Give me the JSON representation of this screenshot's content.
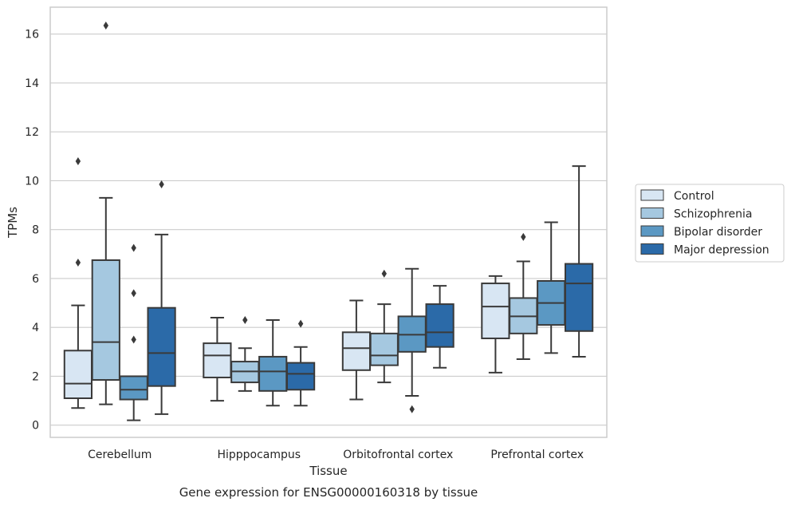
{
  "caption": "Gene expression for ENSG00000160318 by tissue",
  "chart_data": {
    "type": "box",
    "title": "",
    "xlabel": "Tissue",
    "ylabel": "TPMs",
    "ylim": [
      -0.5,
      17.1
    ],
    "yticks": [
      0,
      2,
      4,
      6,
      8,
      10,
      12,
      14,
      16
    ],
    "grid": true,
    "legend_position": "right",
    "categories": [
      "Cerebellum",
      "Hipppocampus",
      "Orbitofrontal cortex",
      "Prefrontal cortex"
    ],
    "series": [
      {
        "name": "Control",
        "color": "#d8e6f3",
        "boxes": [
          {
            "whisker_low": 0.7,
            "q1": 1.1,
            "median": 1.7,
            "q3": 3.05,
            "whisker_high": 4.9,
            "outliers": [
              6.65,
              10.8
            ]
          },
          {
            "whisker_low": 1.0,
            "q1": 1.95,
            "median": 2.85,
            "q3": 3.35,
            "whisker_high": 4.4,
            "outliers": []
          },
          {
            "whisker_low": 1.05,
            "q1": 2.25,
            "median": 3.15,
            "q3": 3.8,
            "whisker_high": 5.1,
            "outliers": []
          },
          {
            "whisker_low": 2.15,
            "q1": 3.55,
            "median": 4.85,
            "q3": 5.8,
            "whisker_high": 6.1,
            "outliers": []
          }
        ]
      },
      {
        "name": "Schizophrenia",
        "color": "#a5c8e0",
        "boxes": [
          {
            "whisker_low": 0.85,
            "q1": 1.85,
            "median": 3.4,
            "q3": 6.75,
            "whisker_high": 9.3,
            "outliers": [
              16.35
            ]
          },
          {
            "whisker_low": 1.4,
            "q1": 1.75,
            "median": 2.2,
            "q3": 2.6,
            "whisker_high": 3.15,
            "outliers": [
              4.3
            ]
          },
          {
            "whisker_low": 1.75,
            "q1": 2.45,
            "median": 2.85,
            "q3": 3.75,
            "whisker_high": 4.95,
            "outliers": [
              6.2
            ]
          },
          {
            "whisker_low": 2.7,
            "q1": 3.75,
            "median": 4.45,
            "q3": 5.2,
            "whisker_high": 6.7,
            "outliers": [
              7.7
            ]
          }
        ]
      },
      {
        "name": "Bipolar disorder",
        "color": "#5b98c3",
        "boxes": [
          {
            "whisker_low": 0.2,
            "q1": 1.05,
            "median": 1.45,
            "q3": 2.0,
            "whisker_high": 2.0,
            "outliers": [
              3.5,
              5.4,
              7.25
            ]
          },
          {
            "whisker_low": 0.8,
            "q1": 1.4,
            "median": 2.2,
            "q3": 2.8,
            "whisker_high": 4.3,
            "outliers": []
          },
          {
            "whisker_low": 1.2,
            "q1": 3.0,
            "median": 3.7,
            "q3": 4.45,
            "whisker_high": 6.4,
            "outliers": [
              0.65
            ]
          },
          {
            "whisker_low": 2.95,
            "q1": 4.1,
            "median": 5.0,
            "q3": 5.9,
            "whisker_high": 8.3,
            "outliers": []
          }
        ]
      },
      {
        "name": "Major depression",
        "color": "#2b6aa8",
        "boxes": [
          {
            "whisker_low": 0.45,
            "q1": 1.6,
            "median": 2.95,
            "q3": 4.8,
            "whisker_high": 7.8,
            "outliers": [
              9.85
            ]
          },
          {
            "whisker_low": 0.8,
            "q1": 1.45,
            "median": 2.1,
            "q3": 2.55,
            "whisker_high": 3.2,
            "outliers": [
              4.15
            ]
          },
          {
            "whisker_low": 2.35,
            "q1": 3.2,
            "median": 3.8,
            "q3": 4.95,
            "whisker_high": 5.7,
            "outliers": []
          },
          {
            "whisker_low": 2.8,
            "q1": 3.85,
            "median": 5.8,
            "q3": 6.6,
            "whisker_high": 10.6,
            "outliers": []
          }
        ]
      }
    ]
  }
}
